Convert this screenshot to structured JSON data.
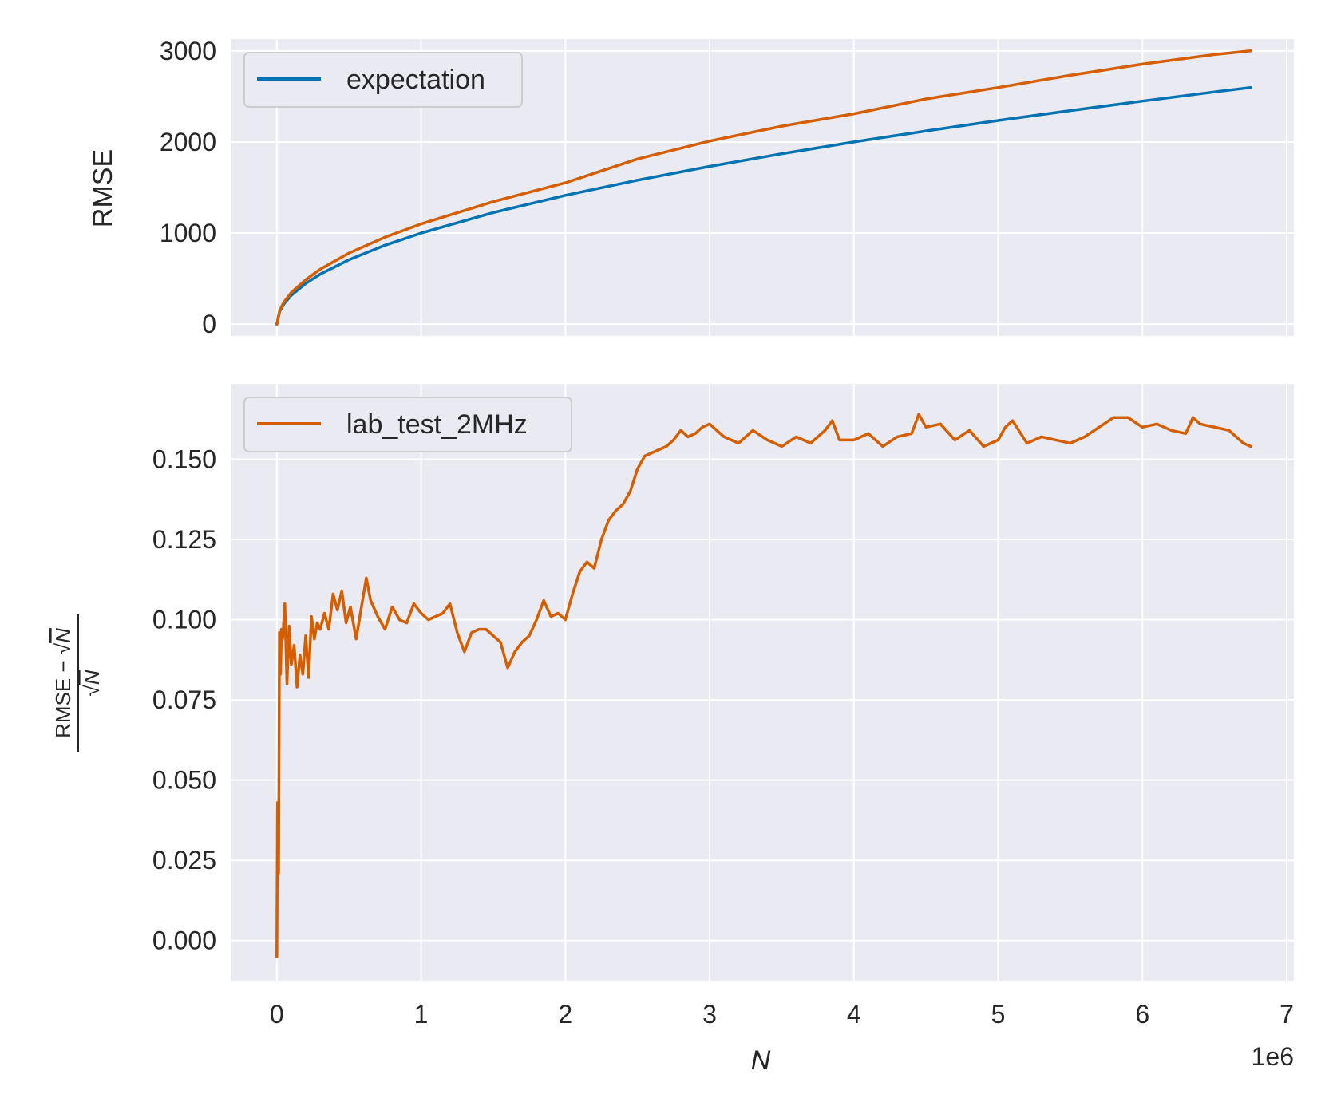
{
  "colors": {
    "background": "#eaeaf2",
    "grid": "#ffffff",
    "expectation": "#0173b2",
    "lab": "#d55e00",
    "text": "#262626"
  },
  "chart_data": [
    {
      "type": "line",
      "ylabel": "RMSE",
      "xlim": [
        -320000,
        7050000
      ],
      "ylim": [
        -130,
        3130
      ],
      "grid": true,
      "legend_position": "upper-left",
      "yticks": [
        0,
        1000,
        2000,
        3000
      ],
      "ytick_labels": [
        "0",
        "1000",
        "2000",
        "3000"
      ],
      "xticks": [
        0,
        1000000,
        2000000,
        3000000,
        4000000,
        5000000,
        6000000,
        7000000
      ],
      "legend": [
        "expectation"
      ],
      "series": [
        {
          "name": "expectation",
          "color": "#0173b2",
          "x": [
            0,
            20000,
            50000,
            100000,
            200000,
            300000,
            500000,
            750000,
            1000000,
            1500000,
            2000000,
            2500000,
            3000000,
            3500000,
            4000000,
            4500000,
            5000000,
            5500000,
            6000000,
            6500000,
            6750000
          ],
          "y": [
            0,
            141,
            224,
            316,
            447,
            548,
            707,
            866,
            1000,
            1225,
            1414,
            1581,
            1732,
            1871,
            2000,
            2121,
            2236,
            2345,
            2449,
            2550,
            2598
          ]
        },
        {
          "color": "#d55e00",
          "x": [
            0,
            20000,
            50000,
            100000,
            200000,
            300000,
            500000,
            750000,
            1000000,
            1500000,
            2000000,
            2500000,
            3000000,
            3500000,
            4000000,
            4500000,
            5000000,
            5500000,
            6000000,
            6500000,
            6750000
          ],
          "y": [
            0,
            152,
            244,
            347,
            487,
            603,
            780,
            955,
            1100,
            1345,
            1552,
            1814,
            2010,
            2174,
            2310,
            2473,
            2598,
            2732,
            2855,
            2960,
            3001
          ]
        }
      ]
    },
    {
      "type": "line",
      "xlabel": "N",
      "ylabel": "RMSE − √N / √N",
      "x_offset_label": "1e6",
      "xlim": [
        -320000,
        7050000
      ],
      "ylim": [
        -0.0125,
        0.1735
      ],
      "grid": true,
      "legend_position": "upper-left",
      "yticks": [
        0.0,
        0.025,
        0.05,
        0.075,
        0.1,
        0.125,
        0.15
      ],
      "ytick_labels": [
        "0.000",
        "0.025",
        "0.050",
        "0.075",
        "0.100",
        "0.125",
        "0.150"
      ],
      "xticks": [
        0,
        1000000,
        2000000,
        3000000,
        4000000,
        5000000,
        6000000,
        7000000
      ],
      "xtick_labels": [
        "0",
        "1",
        "2",
        "3",
        "4",
        "5",
        "6",
        "7"
      ],
      "legend": [
        "lab_test_2MHz"
      ],
      "series": [
        {
          "name": "lab_test_2MHz",
          "color": "#d55e00",
          "x": [
            0,
            5000,
            12000,
            18000,
            25000,
            32000,
            40000,
            55000,
            70000,
            85000,
            100000,
            120000,
            140000,
            160000,
            180000,
            200000,
            220000,
            240000,
            260000,
            280000,
            300000,
            330000,
            360000,
            390000,
            420000,
            450000,
            480000,
            510000,
            550000,
            590000,
            620000,
            650000,
            700000,
            750000,
            800000,
            850000,
            900000,
            950000,
            1000000,
            1050000,
            1100000,
            1150000,
            1200000,
            1250000,
            1300000,
            1350000,
            1400000,
            1450000,
            1500000,
            1550000,
            1600000,
            1650000,
            1700000,
            1750000,
            1800000,
            1850000,
            1900000,
            1950000,
            2000000,
            2050000,
            2100000,
            2150000,
            2200000,
            2250000,
            2300000,
            2350000,
            2400000,
            2450000,
            2500000,
            2550000,
            2600000,
            2650000,
            2700000,
            2750000,
            2800000,
            2850000,
            2900000,
            2950000,
            3000000,
            3100000,
            3200000,
            3300000,
            3400000,
            3500000,
            3600000,
            3700000,
            3800000,
            3850000,
            3900000,
            4000000,
            4100000,
            4200000,
            4300000,
            4400000,
            4450000,
            4500000,
            4600000,
            4700000,
            4800000,
            4900000,
            5000000,
            5050000,
            5100000,
            5200000,
            5300000,
            5400000,
            5500000,
            5600000,
            5700000,
            5800000,
            5900000,
            6000000,
            6100000,
            6200000,
            6300000,
            6350000,
            6400000,
            6500000,
            6600000,
            6700000,
            6750000
          ],
          "y": [
            -0.005,
            0.043,
            0.021,
            0.096,
            0.083,
            0.097,
            0.094,
            0.105,
            0.08,
            0.098,
            0.086,
            0.092,
            0.079,
            0.089,
            0.083,
            0.095,
            0.082,
            0.101,
            0.094,
            0.099,
            0.097,
            0.102,
            0.097,
            0.108,
            0.103,
            0.109,
            0.099,
            0.104,
            0.094,
            0.105,
            0.113,
            0.106,
            0.101,
            0.097,
            0.104,
            0.1,
            0.099,
            0.105,
            0.102,
            0.1,
            0.101,
            0.102,
            0.105,
            0.096,
            0.09,
            0.096,
            0.097,
            0.097,
            0.095,
            0.093,
            0.085,
            0.09,
            0.093,
            0.095,
            0.1,
            0.106,
            0.101,
            0.102,
            0.1,
            0.108,
            0.115,
            0.118,
            0.116,
            0.125,
            0.131,
            0.134,
            0.136,
            0.14,
            0.147,
            0.151,
            0.152,
            0.153,
            0.154,
            0.156,
            0.159,
            0.157,
            0.158,
            0.16,
            0.161,
            0.157,
            0.155,
            0.159,
            0.156,
            0.154,
            0.157,
            0.155,
            0.159,
            0.162,
            0.156,
            0.156,
            0.158,
            0.154,
            0.157,
            0.158,
            0.164,
            0.16,
            0.161,
            0.156,
            0.159,
            0.154,
            0.156,
            0.16,
            0.162,
            0.155,
            0.157,
            0.156,
            0.155,
            0.157,
            0.16,
            0.163,
            0.163,
            0.16,
            0.161,
            0.159,
            0.158,
            0.163,
            0.161,
            0.16,
            0.159,
            0.155,
            0.154
          ]
        }
      ]
    }
  ]
}
